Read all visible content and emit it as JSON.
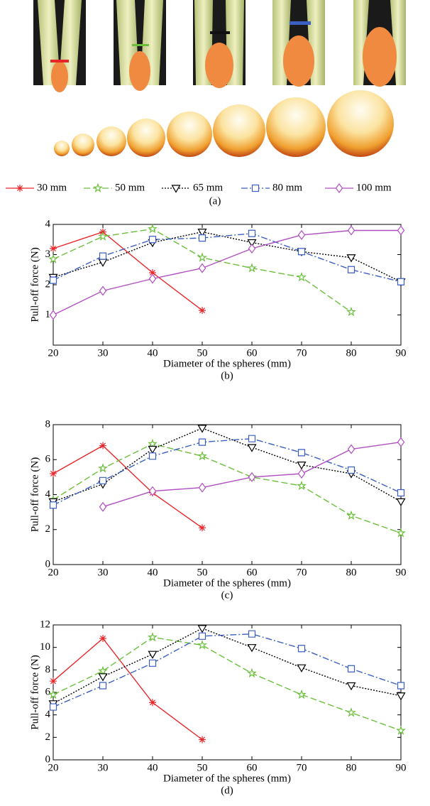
{
  "photo_panel": {
    "caption": "(a)"
  },
  "chart_data": [
    {
      "type": "line",
      "caption": "(b)",
      "xlabel": "Diameter of the spheres (mm)",
      "ylabel": "Pull-off force (N)",
      "x": [
        20,
        30,
        40,
        50,
        60,
        70,
        80,
        90
      ],
      "xlim": [
        20,
        90
      ],
      "xticks": [
        20,
        30,
        40,
        50,
        60,
        70,
        80,
        90
      ],
      "ylim": [
        0,
        4
      ],
      "yticks": [
        1,
        2,
        3,
        4
      ],
      "series": [
        {
          "name": "30 mm",
          "color": "#e8262a",
          "marker": "asterisk",
          "dash": "solid",
          "values": [
            3.2,
            3.75,
            2.4,
            1.15,
            null,
            null,
            null,
            null
          ]
        },
        {
          "name": "50 mm",
          "color": "#6cbf3c",
          "marker": "star",
          "dash": "dashed",
          "values": [
            2.85,
            3.6,
            3.85,
            2.9,
            2.55,
            2.25,
            1.1,
            null
          ]
        },
        {
          "name": "65 mm",
          "color": "#000000",
          "marker": "triangle-down",
          "dash": "dotted",
          "values": [
            2.25,
            2.75,
            3.4,
            3.75,
            3.4,
            3.1,
            2.9,
            2.1
          ]
        },
        {
          "name": "80 mm",
          "color": "#3b5fc0",
          "marker": "square",
          "dash": "dashdot",
          "values": [
            2.15,
            2.95,
            3.5,
            3.55,
            3.7,
            3.1,
            2.5,
            2.1
          ]
        },
        {
          "name": "100 mm",
          "color": "#b04fc0",
          "marker": "diamond",
          "dash": "solid",
          "values": [
            1.0,
            1.8,
            2.2,
            2.55,
            3.2,
            3.65,
            3.8,
            3.8
          ]
        }
      ]
    },
    {
      "type": "line",
      "caption": "(c)",
      "xlabel": "Diameter of the spheres (mm)",
      "ylabel": "Pull-off force (N)",
      "x": [
        20,
        30,
        40,
        50,
        60,
        70,
        80,
        90
      ],
      "xlim": [
        20,
        90
      ],
      "xticks": [
        20,
        30,
        40,
        50,
        60,
        70,
        80,
        90
      ],
      "ylim": [
        0,
        8
      ],
      "yticks": [
        0,
        2,
        4,
        6,
        8
      ],
      "series": [
        {
          "name": "30 mm",
          "color": "#e8262a",
          "marker": "asterisk",
          "dash": "solid",
          "values": [
            5.2,
            6.8,
            4.1,
            2.1,
            null,
            null,
            null,
            null
          ]
        },
        {
          "name": "50 mm",
          "color": "#6cbf3c",
          "marker": "star",
          "dash": "dashed",
          "values": [
            3.7,
            5.5,
            6.9,
            6.2,
            5.0,
            4.5,
            2.8,
            1.8
          ]
        },
        {
          "name": "65 mm",
          "color": "#000000",
          "marker": "triangle-down",
          "dash": "dotted",
          "values": [
            3.6,
            4.6,
            6.6,
            7.8,
            6.7,
            5.7,
            5.2,
            3.6
          ]
        },
        {
          "name": "80 mm",
          "color": "#3b5fc0",
          "marker": "square",
          "dash": "dashdot",
          "values": [
            3.4,
            4.8,
            6.2,
            7.0,
            7.2,
            6.4,
            5.4,
            4.1
          ]
        },
        {
          "name": "100 mm",
          "color": "#b04fc0",
          "marker": "diamond",
          "dash": "solid",
          "values": [
            null,
            3.3,
            4.2,
            4.4,
            5.0,
            5.2,
            6.6,
            7.0
          ]
        }
      ]
    },
    {
      "type": "line",
      "caption": "(d)",
      "xlabel": "Diameter of the spheres (mm)",
      "ylabel": "Pull-off force (N)",
      "x": [
        20,
        30,
        40,
        50,
        60,
        70,
        80,
        90
      ],
      "xlim": [
        20,
        90
      ],
      "xticks": [
        20,
        30,
        40,
        50,
        60,
        70,
        80,
        90
      ],
      "ylim": [
        0,
        12
      ],
      "yticks": [
        0,
        2,
        4,
        6,
        8,
        10,
        12
      ],
      "series": [
        {
          "name": "30 mm",
          "color": "#e8262a",
          "marker": "asterisk",
          "dash": "solid",
          "values": [
            7.0,
            10.8,
            5.1,
            1.8,
            null,
            null,
            null,
            null
          ]
        },
        {
          "name": "50 mm",
          "color": "#6cbf3c",
          "marker": "star",
          "dash": "dashed",
          "values": [
            5.8,
            7.9,
            10.9,
            10.2,
            7.7,
            5.8,
            4.2,
            2.6
          ]
        },
        {
          "name": "65 mm",
          "color": "#000000",
          "marker": "triangle-down",
          "dash": "dotted",
          "values": [
            5.0,
            7.4,
            9.4,
            11.7,
            10.0,
            8.2,
            6.6,
            5.7
          ]
        },
        {
          "name": "80 mm",
          "color": "#3b5fc0",
          "marker": "square",
          "dash": "dashdot",
          "values": [
            4.7,
            6.6,
            8.6,
            11.0,
            11.2,
            9.9,
            8.1,
            6.6
          ]
        }
      ]
    }
  ]
}
